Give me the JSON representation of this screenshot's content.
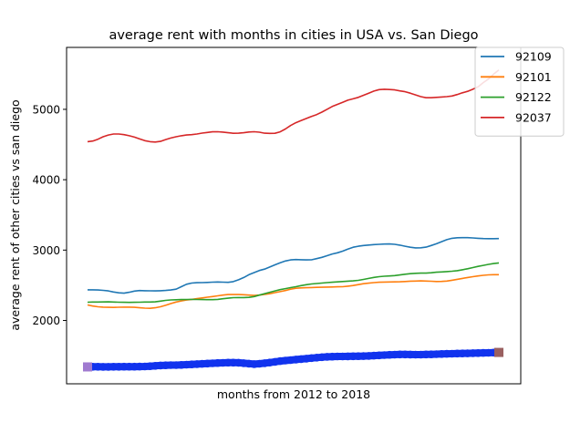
{
  "chart_data": {
    "type": "line",
    "title": "average rent with months in cities in USA vs. San Diego",
    "xlabel": "months from 2012 to 2018",
    "ylabel": "average rent of other cities vs san diego",
    "ylim": [
      1100,
      5880
    ],
    "y_ticks": [
      2000,
      3000,
      4000,
      5000
    ],
    "grid": false,
    "legend_position": "top-right",
    "n_points": 80,
    "series": [
      {
        "name": "92109",
        "color": "#1f77b4",
        "values": [
          2435,
          2436,
          2433,
          2428,
          2420,
          2405,
          2393,
          2387,
          2400,
          2418,
          2425,
          2423,
          2421,
          2420,
          2423,
          2426,
          2433,
          2445,
          2480,
          2515,
          2532,
          2536,
          2538,
          2540,
          2544,
          2547,
          2545,
          2542,
          2552,
          2578,
          2610,
          2650,
          2680,
          2710,
          2730,
          2760,
          2790,
          2820,
          2845,
          2860,
          2865,
          2863,
          2860,
          2862,
          2878,
          2897,
          2920,
          2945,
          2962,
          2985,
          3015,
          3040,
          3055,
          3065,
          3072,
          3078,
          3082,
          3086,
          3087,
          3082,
          3070,
          3055,
          3040,
          3032,
          3033,
          3042,
          3065,
          3090,
          3120,
          3148,
          3167,
          3175,
          3177,
          3177,
          3173,
          3167,
          3163,
          3162,
          3162,
          3163
        ]
      },
      {
        "name": "92101",
        "color": "#ff7f0e",
        "values": [
          2220,
          2205,
          2195,
          2190,
          2187,
          2186,
          2188,
          2190,
          2190,
          2187,
          2180,
          2175,
          2172,
          2180,
          2195,
          2215,
          2240,
          2262,
          2278,
          2290,
          2300,
          2310,
          2320,
          2330,
          2340,
          2350,
          2360,
          2368,
          2370,
          2368,
          2365,
          2360,
          2355,
          2360,
          2370,
          2380,
          2395,
          2410,
          2425,
          2445,
          2458,
          2463,
          2465,
          2468,
          2470,
          2472,
          2475,
          2476,
          2478,
          2480,
          2487,
          2497,
          2510,
          2522,
          2530,
          2538,
          2543,
          2546,
          2547,
          2548,
          2550,
          2553,
          2558,
          2560,
          2562,
          2560,
          2557,
          2554,
          2555,
          2560,
          2572,
          2585,
          2598,
          2610,
          2622,
          2633,
          2642,
          2648,
          2651,
          2650
        ]
      },
      {
        "name": "92122",
        "color": "#2ca02c",
        "values": [
          2260,
          2262,
          2262,
          2263,
          2264,
          2262,
          2260,
          2258,
          2257,
          2258,
          2260,
          2262,
          2262,
          2265,
          2275,
          2285,
          2292,
          2295,
          2297,
          2298,
          2299,
          2298,
          2297,
          2296,
          2296,
          2300,
          2308,
          2317,
          2324,
          2326,
          2326,
          2328,
          2340,
          2360,
          2380,
          2400,
          2420,
          2438,
          2452,
          2467,
          2480,
          2495,
          2508,
          2518,
          2525,
          2532,
          2538,
          2543,
          2548,
          2553,
          2558,
          2563,
          2570,
          2583,
          2598,
          2612,
          2622,
          2628,
          2632,
          2638,
          2647,
          2657,
          2665,
          2670,
          2672,
          2673,
          2678,
          2685,
          2690,
          2695,
          2700,
          2708,
          2720,
          2735,
          2752,
          2768,
          2783,
          2797,
          2808,
          2818
        ]
      },
      {
        "name": "92037",
        "color": "#d62728",
        "values": [
          4540,
          4550,
          4575,
          4610,
          4635,
          4650,
          4650,
          4640,
          4625,
          4605,
          4580,
          4555,
          4540,
          4535,
          4545,
          4570,
          4592,
          4610,
          4625,
          4635,
          4640,
          4650,
          4662,
          4672,
          4680,
          4682,
          4677,
          4668,
          4660,
          4661,
          4668,
          4678,
          4682,
          4675,
          4661,
          4658,
          4660,
          4680,
          4720,
          4770,
          4810,
          4840,
          4870,
          4900,
          4925,
          4960,
          5000,
          5040,
          5070,
          5100,
          5130,
          5150,
          5170,
          5200,
          5230,
          5260,
          5280,
          5285,
          5282,
          5276,
          5262,
          5250,
          5230,
          5205,
          5180,
          5165,
          5165,
          5170,
          5175,
          5180,
          5190,
          5210,
          5235,
          5255,
          5285,
          5320,
          5380,
          5430,
          5500,
          5560
        ]
      }
    ],
    "overlay_series": {
      "color": "#1133ee",
      "marker": "thick-band",
      "start_marker_color": "#a07ad0",
      "end_marker_color": "#9a6060",
      "values": [
        1340,
        1342,
        1342,
        1341,
        1341,
        1342,
        1342,
        1343,
        1343,
        1344,
        1345,
        1346,
        1350,
        1355,
        1360,
        1363,
        1365,
        1365,
        1368,
        1372,
        1376,
        1380,
        1384,
        1388,
        1392,
        1395,
        1398,
        1400,
        1401,
        1399,
        1393,
        1386,
        1380,
        1385,
        1393,
        1402,
        1412,
        1422,
        1430,
        1437,
        1444,
        1451,
        1458,
        1465,
        1472,
        1478,
        1483,
        1486,
        1488,
        1489,
        1490,
        1491,
        1492,
        1494,
        1497,
        1500,
        1504,
        1508,
        1512,
        1515,
        1517,
        1517,
        1516,
        1515,
        1515,
        1517,
        1519,
        1521,
        1523,
        1526,
        1528,
        1530,
        1532,
        1533,
        1535,
        1537,
        1539,
        1541,
        1543,
        1546
      ]
    }
  }
}
